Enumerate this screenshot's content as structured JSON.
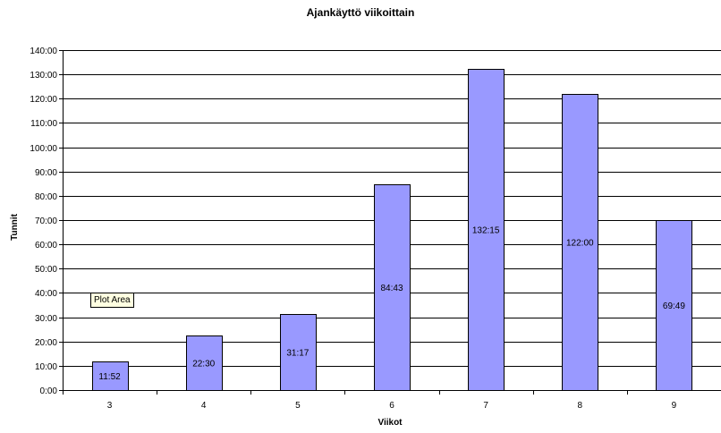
{
  "chart_data": {
    "type": "bar",
    "title": "Ajankäyttö viikoittain",
    "xlabel": "Viikot",
    "ylabel": "Tunnit",
    "categories": [
      "3",
      "4",
      "5",
      "6",
      "7",
      "8",
      "9"
    ],
    "values": [
      11.867,
      22.5,
      31.283,
      84.717,
      132.25,
      122.0,
      69.817
    ],
    "value_labels": [
      "11:52",
      "22:30",
      "31:17",
      "84:43",
      "132:15",
      "122:00",
      "69:49"
    ],
    "ylim": [
      0,
      140
    ],
    "yticks": [
      0,
      10,
      20,
      30,
      40,
      50,
      60,
      70,
      80,
      90,
      100,
      110,
      120,
      130,
      140
    ],
    "ytick_labels": [
      "0:00",
      "10:00",
      "20:00",
      "30:00",
      "40:00",
      "50:00",
      "60:00",
      "70:00",
      "80:00",
      "90:00",
      "100:00",
      "110:00",
      "120:00",
      "130:00",
      "140:00"
    ],
    "grid": true,
    "legend": "none",
    "colors": {
      "bar_fill": "#9999ff",
      "bar_stroke": "#000000",
      "grid": "#000000"
    }
  },
  "tooltip": {
    "text": "Plot Area"
  }
}
